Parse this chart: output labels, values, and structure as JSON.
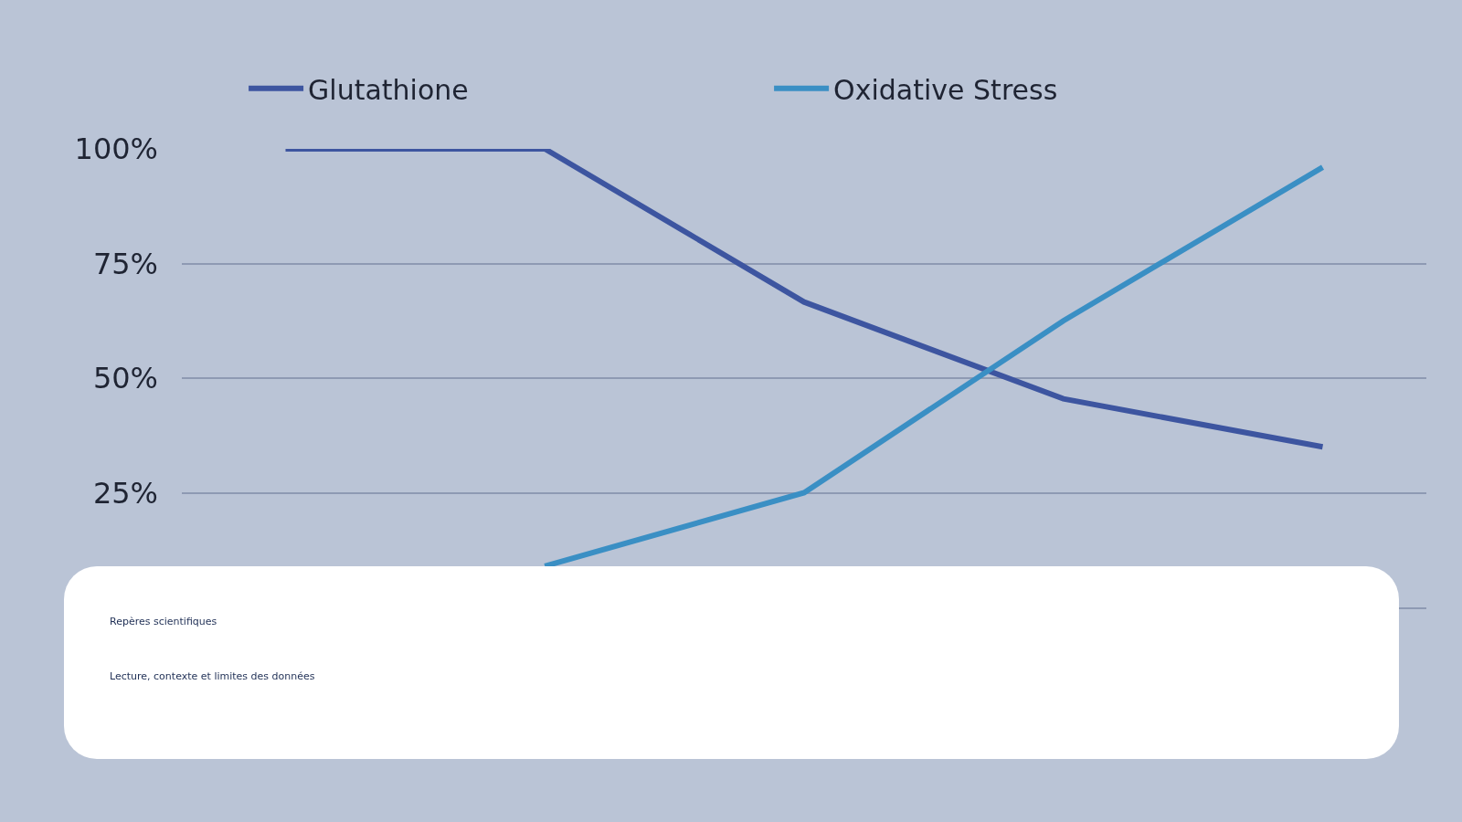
{
  "chart_data": {
    "type": "line",
    "categories": [
      null,
      null,
      null,
      null,
      null
    ],
    "ylim": [
      0,
      100
    ],
    "yticks": [
      {
        "value": 0,
        "label": null
      },
      {
        "value": 25,
        "label": "25%"
      },
      {
        "value": 50,
        "label": "50%"
      },
      {
        "value": 75,
        "label": "75%"
      },
      {
        "value": 100,
        "label": "100%"
      }
    ],
    "tick_labels": "y",
    "grid": "y",
    "legend": "top",
    "marker": "none",
    "line_style": "solid",
    "series": [
      {
        "name": "Glutathione",
        "color": "#3d55a0",
        "values": [
          100,
          100,
          66.6,
          45.5,
          35
        ]
      },
      {
        "name": "Oxidative Stress",
        "color": "#3a8fc4",
        "values": [
          null,
          9,
          25,
          62.5,
          96
        ]
      }
    ],
    "annotations": [
      "Repères scientifiques",
      "Lecture, contexte et limites des données"
    ]
  }
}
